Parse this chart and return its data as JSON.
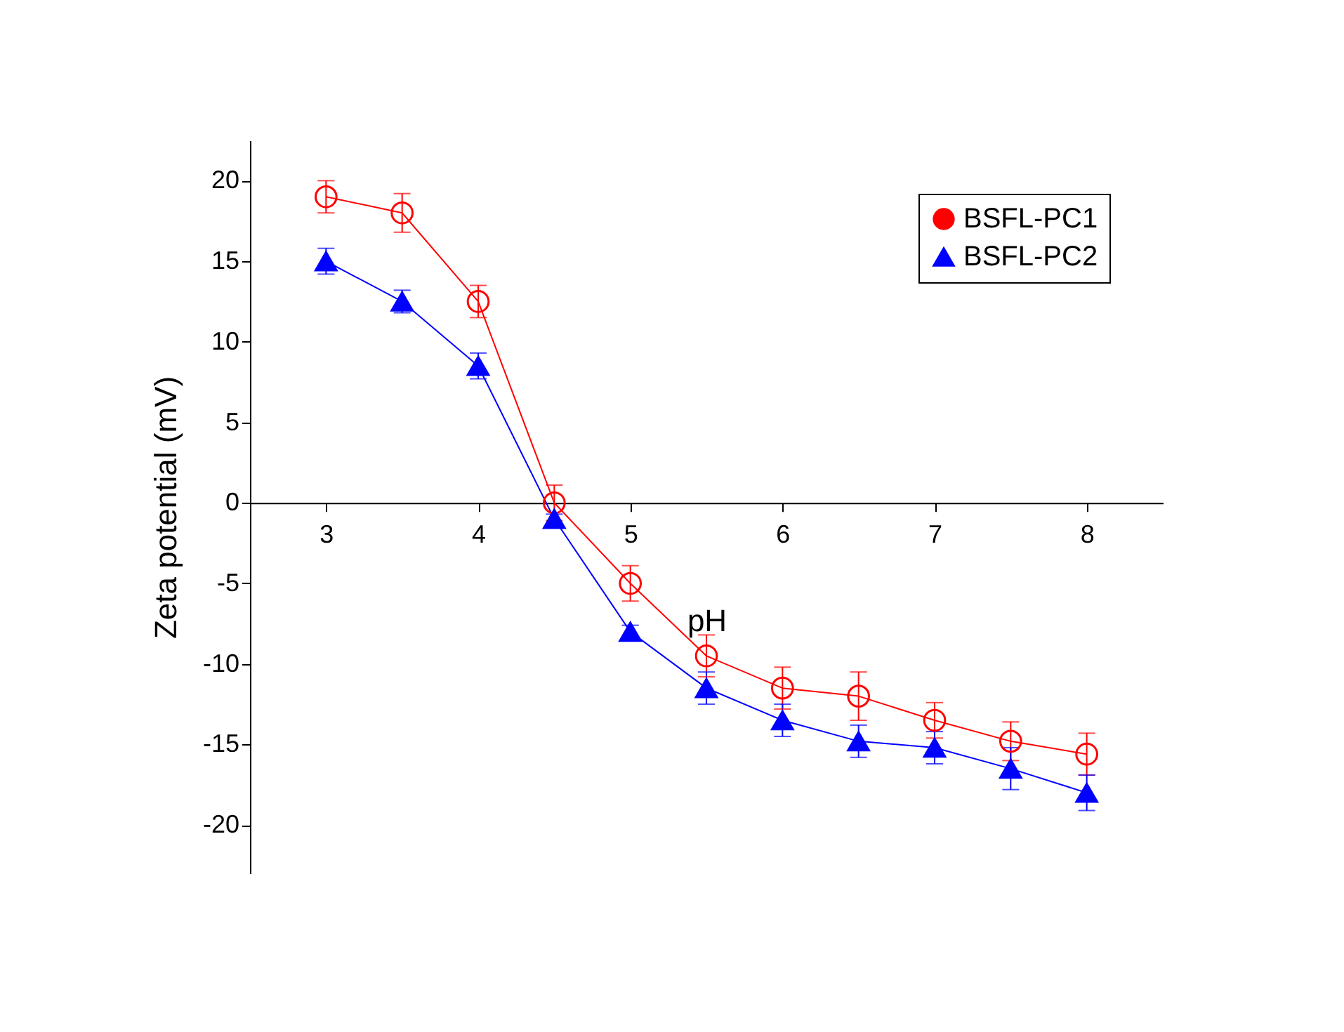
{
  "chart_data": {
    "type": "line",
    "xlabel": "pH",
    "ylabel": "Zeta potential (mV)",
    "x": [
      3,
      3.5,
      4,
      4.5,
      5,
      5.5,
      6,
      6.5,
      7,
      7.5,
      8
    ],
    "series": [
      {
        "name": "BSFL-PC1",
        "color": "#ff0000",
        "marker": "circle",
        "values": [
          19,
          18,
          12.5,
          0,
          -5,
          -9.5,
          -11.5,
          -12,
          -13.5,
          -14.8,
          -15.6
        ],
        "errors": [
          1,
          1.2,
          1,
          1.1,
          1.1,
          1.3,
          1.3,
          1.5,
          1.1,
          1.2,
          1.3
        ]
      },
      {
        "name": "BSFL-PC2",
        "color": "#0000ff",
        "marker": "triangle",
        "values": [
          15,
          12.5,
          8.5,
          -1,
          -8,
          -11.5,
          -13.5,
          -14.8,
          -15.2,
          -16.5,
          -18
        ],
        "errors": [
          0.8,
          0.7,
          0.8,
          0.3,
          0.4,
          1,
          1,
          1,
          1,
          1.3,
          1.1
        ]
      }
    ],
    "xlim": [
      2.5,
      8.5
    ],
    "xticks": [
      3,
      4,
      5,
      6,
      7,
      8
    ],
    "ylim": [
      -23,
      22.5
    ],
    "yticks": [
      -20,
      -15,
      -10,
      -5,
      0,
      5,
      10,
      15,
      20
    ],
    "grid": false,
    "legend": "top right"
  }
}
